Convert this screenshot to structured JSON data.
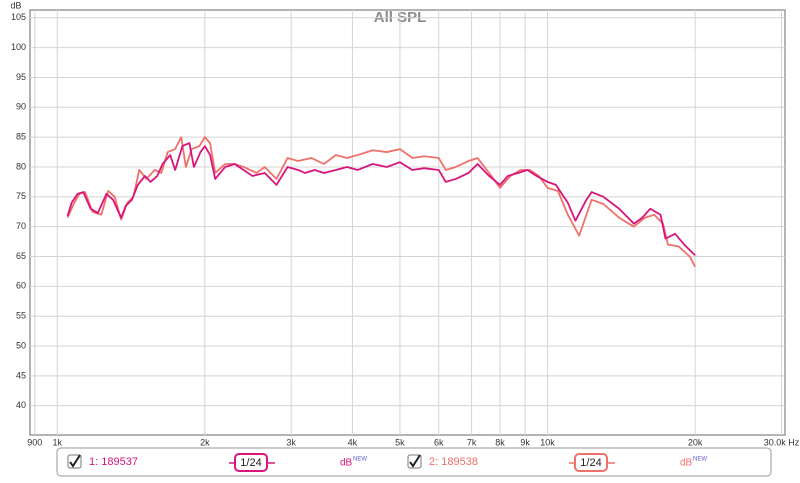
{
  "chart_data": {
    "type": "line",
    "title": "All SPL",
    "ylabel": "dB",
    "xscale": "log",
    "grid": true,
    "xlim": [
      880,
      30500
    ],
    "ylim": [
      35.1,
      106.3
    ],
    "yticks": [
      40,
      45,
      50,
      55,
      60,
      65,
      70,
      75,
      80,
      85,
      90,
      95,
      100,
      105
    ],
    "xticks": [
      900,
      {
        "value": 1000,
        "label": "1k"
      },
      {
        "value": 2000,
        "label": "2k"
      },
      {
        "value": 3000,
        "label": "3k"
      },
      {
        "value": 4000,
        "label": "4k"
      },
      {
        "value": 5000,
        "label": "5k"
      },
      {
        "value": 6000,
        "label": "6k"
      },
      {
        "value": 7000,
        "label": "7k"
      },
      {
        "value": 8000,
        "label": "8k"
      },
      {
        "value": 9000,
        "label": "9k"
      },
      {
        "value": 10000,
        "label": "10k"
      },
      {
        "value": 20000,
        "label": "20k"
      },
      {
        "value": 30000,
        "label": "30.0k Hz"
      }
    ],
    "series": [
      {
        "name": "1: 189537",
        "color": "#d8157c",
        "checked": true,
        "smoothing": "1/24",
        "unit": "dB",
        "badge": "NEW",
        "x": [
          1050,
          1070,
          1100,
          1130,
          1170,
          1210,
          1260,
          1300,
          1350,
          1380,
          1420,
          1460,
          1510,
          1550,
          1600,
          1640,
          1700,
          1740,
          1800,
          1860,
          1900,
          1960,
          2000,
          2050,
          2100,
          2200,
          2300,
          2400,
          2500,
          2650,
          2800,
          2950,
          3100,
          3200,
          3350,
          3500,
          3700,
          3900,
          4100,
          4400,
          4700,
          5000,
          5300,
          5600,
          6000,
          6200,
          6500,
          6900,
          7200,
          7600,
          8000,
          8300,
          8700,
          9100,
          9500,
          10000,
          10400,
          11000,
          11400,
          12000,
          12300,
          13000,
          14000,
          15000,
          15600,
          16200,
          17000,
          17400,
          18200,
          19000,
          20000
        ],
        "values": [
          71.8,
          74,
          75.5,
          75.8,
          73,
          72.3,
          75.5,
          74.5,
          71.5,
          73.5,
          74.5,
          77,
          78.5,
          77.5,
          78.5,
          80.5,
          82,
          79.5,
          83.5,
          84,
          80,
          82.5,
          83.5,
          82,
          78,
          80,
          80.5,
          79.5,
          78.5,
          79,
          77,
          80,
          79.5,
          79,
          79.5,
          79,
          79.5,
          80,
          79.5,
          80.5,
          80,
          80.8,
          79.5,
          79.8,
          79.5,
          77.5,
          78,
          79,
          80.5,
          78.5,
          77,
          78.5,
          79,
          79.5,
          78.5,
          77.5,
          77,
          74,
          71,
          74.5,
          75.8,
          75,
          73,
          70.5,
          71.5,
          73,
          72,
          68,
          68.8,
          67,
          65.2
        ]
      },
      {
        "name": "2: 189538",
        "color": "#f0706a",
        "checked": true,
        "smoothing": "1/24",
        "unit": "dB",
        "badge": "NEW",
        "x": [
          1050,
          1080,
          1110,
          1140,
          1180,
          1230,
          1270,
          1310,
          1350,
          1390,
          1430,
          1470,
          1520,
          1580,
          1630,
          1680,
          1740,
          1790,
          1830,
          1880,
          1950,
          2000,
          2050,
          2100,
          2200,
          2300,
          2400,
          2550,
          2650,
          2800,
          2950,
          3100,
          3300,
          3500,
          3700,
          3900,
          4100,
          4400,
          4700,
          5000,
          5300,
          5600,
          6000,
          6200,
          6500,
          6900,
          7200,
          7600,
          8000,
          8400,
          8800,
          9200,
          9600,
          10000,
          10500,
          11000,
          11600,
          12300,
          13000,
          14000,
          15000,
          15800,
          16500,
          17200,
          17600,
          18500,
          19500,
          20000
        ],
        "values": [
          71.5,
          73.8,
          75.5,
          75.8,
          72.5,
          72,
          76,
          75,
          71.2,
          74,
          75,
          79.5,
          78,
          79.5,
          79,
          82.5,
          83,
          85,
          80,
          83,
          83.5,
          85,
          84,
          79,
          80.5,
          80.5,
          80,
          79,
          80,
          78,
          81.5,
          81,
          81.5,
          80.5,
          82,
          81.5,
          82,
          82.8,
          82.5,
          83,
          81.5,
          81.8,
          81.5,
          79.5,
          80,
          81,
          81.5,
          79,
          76.5,
          78.5,
          79.5,
          79.5,
          78.5,
          76.5,
          76,
          72,
          68.5,
          74.5,
          73.8,
          71.5,
          70,
          71.5,
          72,
          70.5,
          67,
          66.7,
          65,
          63.3
        ]
      }
    ]
  }
}
